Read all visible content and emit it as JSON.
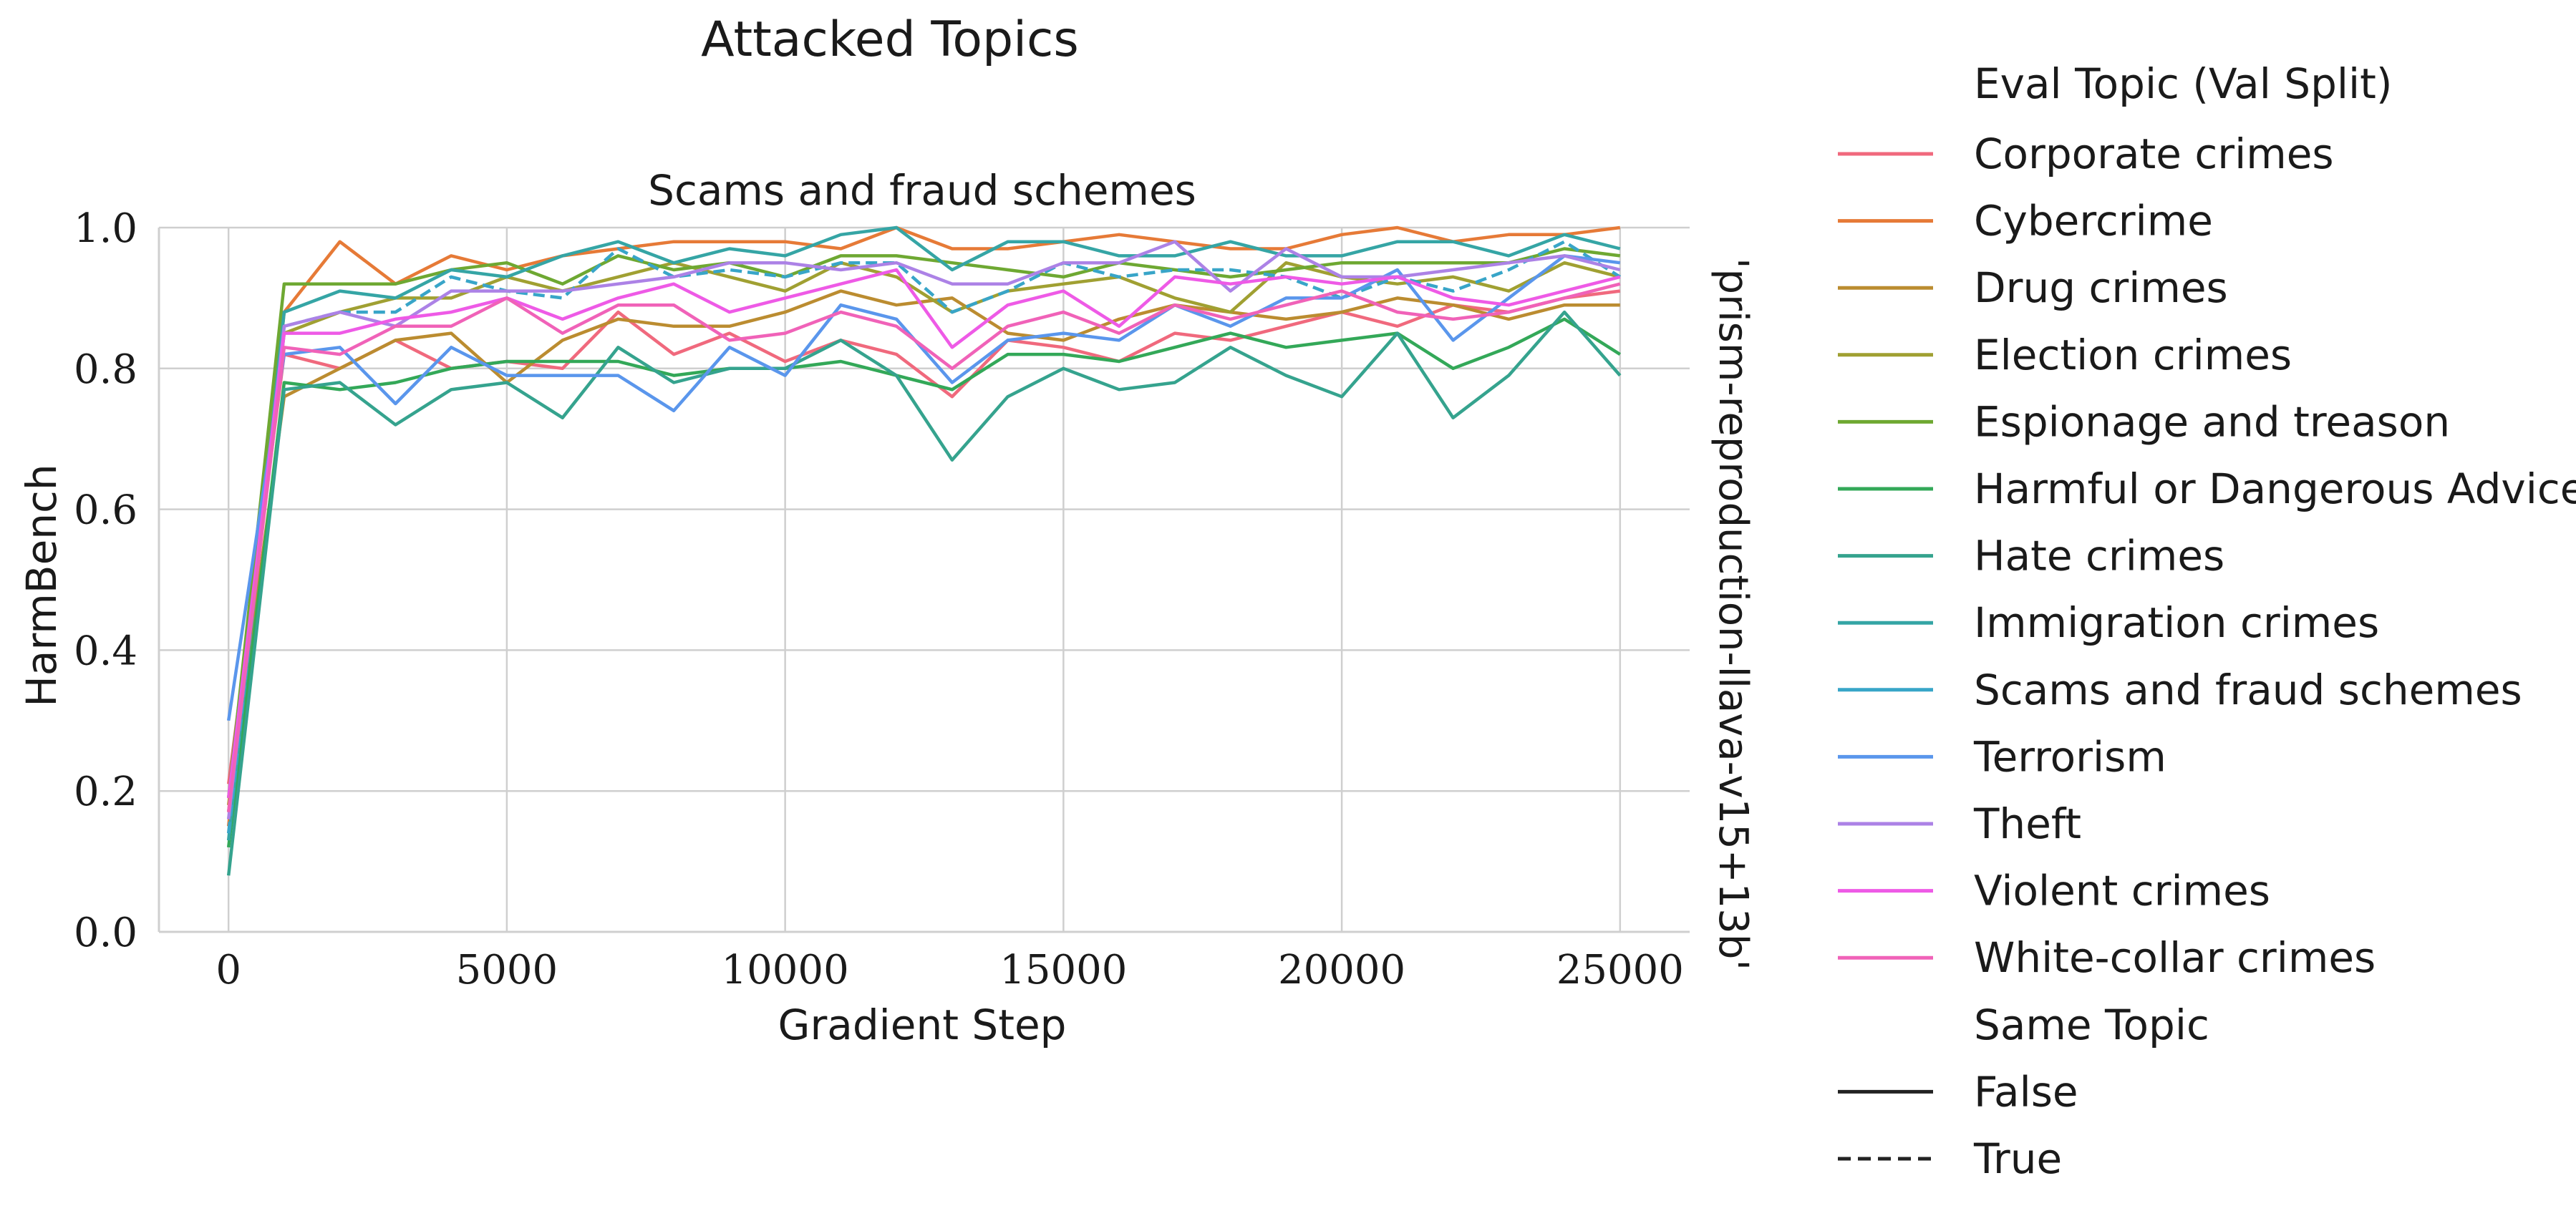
{
  "chart_data": {
    "type": "line",
    "suptitle": "Attacked Topics",
    "title": "Scams and fraud schemes",
    "xlabel": "Gradient Step",
    "ylabel": "HarmBench",
    "facet_label": "'prism-reproduction-llava-v15+13b'",
    "xlim": [
      -1250,
      26250
    ],
    "ylim": [
      0,
      1.0
    ],
    "xticks": [
      "0",
      "5000",
      "10000",
      "15000",
      "20000",
      "25000"
    ],
    "yticks": [
      "0.0",
      "0.2",
      "0.4",
      "0.6",
      "0.8",
      "1.0"
    ],
    "grid": true,
    "legend": {
      "title": "Eval Topic (Val Split)",
      "style_title": "Same Topic",
      "style_entries": [
        "False",
        "True"
      ],
      "placement": "right"
    },
    "x": [
      0,
      1000,
      2000,
      3000,
      4000,
      5000,
      6000,
      7000,
      8000,
      9000,
      10000,
      11000,
      12000,
      13000,
      14000,
      15000,
      16000,
      17000,
      18000,
      19000,
      20000,
      21000,
      22000,
      23000,
      24000,
      25000
    ],
    "series": [
      {
        "name": "Corporate crimes",
        "color": "#f0697d",
        "dashed": false,
        "values": [
          0.21,
          0.82,
          0.8,
          0.84,
          0.8,
          0.81,
          0.8,
          0.88,
          0.82,
          0.85,
          0.81,
          0.84,
          0.82,
          0.76,
          0.84,
          0.83,
          0.81,
          0.85,
          0.84,
          0.86,
          0.88,
          0.86,
          0.89,
          0.88,
          0.9,
          0.91
        ]
      },
      {
        "name": "Cybercrime",
        "color": "#e67a37",
        "dashed": false,
        "values": [
          0.15,
          0.88,
          0.98,
          0.92,
          0.96,
          0.94,
          0.96,
          0.97,
          0.98,
          0.98,
          0.98,
          0.97,
          1.0,
          0.97,
          0.97,
          0.98,
          0.99,
          0.98,
          0.97,
          0.97,
          0.99,
          1.0,
          0.98,
          0.99,
          0.99,
          1.0
        ]
      },
      {
        "name": "Drug crimes",
        "color": "#bb8c30",
        "dashed": false,
        "values": [
          0.18,
          0.76,
          0.8,
          0.84,
          0.85,
          0.78,
          0.84,
          0.87,
          0.86,
          0.86,
          0.88,
          0.91,
          0.89,
          0.9,
          0.85,
          0.84,
          0.87,
          0.89,
          0.88,
          0.87,
          0.88,
          0.9,
          0.89,
          0.87,
          0.89,
          0.89
        ]
      },
      {
        "name": "Election crimes",
        "color": "#a0a032",
        "dashed": false,
        "values": [
          0.17,
          0.85,
          0.88,
          0.9,
          0.9,
          0.93,
          0.91,
          0.93,
          0.95,
          0.93,
          0.91,
          0.95,
          0.93,
          0.88,
          0.91,
          0.92,
          0.93,
          0.9,
          0.88,
          0.95,
          0.93,
          0.92,
          0.93,
          0.91,
          0.95,
          0.93
        ]
      },
      {
        "name": "Espionage and treason",
        "color": "#6ea832",
        "dashed": false,
        "values": [
          0.19,
          0.92,
          0.92,
          0.92,
          0.94,
          0.95,
          0.92,
          0.96,
          0.94,
          0.95,
          0.93,
          0.96,
          0.96,
          0.95,
          0.94,
          0.93,
          0.95,
          0.94,
          0.93,
          0.94,
          0.95,
          0.95,
          0.95,
          0.95,
          0.97,
          0.96
        ]
      },
      {
        "name": "Harmful or Dangerous Advice",
        "color": "#33a858",
        "dashed": false,
        "values": [
          0.12,
          0.78,
          0.77,
          0.78,
          0.8,
          0.81,
          0.81,
          0.81,
          0.79,
          0.8,
          0.8,
          0.81,
          0.79,
          0.77,
          0.82,
          0.82,
          0.81,
          0.83,
          0.85,
          0.83,
          0.84,
          0.85,
          0.8,
          0.83,
          0.87,
          0.82
        ]
      },
      {
        "name": "Hate crimes",
        "color": "#35a38e",
        "dashed": false,
        "values": [
          0.08,
          0.77,
          0.78,
          0.72,
          0.77,
          0.78,
          0.73,
          0.83,
          0.78,
          0.8,
          0.8,
          0.84,
          0.79,
          0.67,
          0.76,
          0.8,
          0.77,
          0.78,
          0.83,
          0.79,
          0.76,
          0.85,
          0.73,
          0.79,
          0.88,
          0.79
        ]
      },
      {
        "name": "Immigration crimes",
        "color": "#35a5a5",
        "dashed": false,
        "values": [
          0.13,
          0.88,
          0.91,
          0.9,
          0.94,
          0.93,
          0.96,
          0.98,
          0.95,
          0.97,
          0.96,
          0.99,
          1.0,
          0.94,
          0.98,
          0.98,
          0.96,
          0.96,
          0.98,
          0.96,
          0.96,
          0.98,
          0.98,
          0.96,
          0.99,
          0.97
        ]
      },
      {
        "name": "Scams and fraud schemes",
        "color": "#38a5c8",
        "dashed": true,
        "values": [
          0.14,
          0.86,
          0.88,
          0.88,
          0.93,
          0.91,
          0.9,
          0.97,
          0.93,
          0.94,
          0.93,
          0.95,
          0.95,
          0.88,
          0.91,
          0.95,
          0.93,
          0.94,
          0.94,
          0.93,
          0.9,
          0.93,
          0.91,
          0.94,
          0.98,
          0.93
        ]
      },
      {
        "name": "Terrorism",
        "color": "#5a96ec",
        "dashed": false,
        "values": [
          0.3,
          0.82,
          0.83,
          0.75,
          0.83,
          0.79,
          0.79,
          0.79,
          0.74,
          0.83,
          0.79,
          0.89,
          0.87,
          0.78,
          0.84,
          0.85,
          0.84,
          0.89,
          0.86,
          0.9,
          0.9,
          0.94,
          0.84,
          0.9,
          0.96,
          0.95
        ]
      },
      {
        "name": "Theft",
        "color": "#ac82e6",
        "dashed": false,
        "values": [
          0.16,
          0.86,
          0.88,
          0.86,
          0.91,
          0.91,
          0.91,
          0.92,
          0.93,
          0.95,
          0.95,
          0.94,
          0.95,
          0.92,
          0.92,
          0.95,
          0.95,
          0.98,
          0.91,
          0.97,
          0.93,
          0.93,
          0.94,
          0.95,
          0.96,
          0.94
        ]
      },
      {
        "name": "Violent crimes",
        "color": "#ee5ae6",
        "dashed": false,
        "values": [
          0.19,
          0.85,
          0.85,
          0.87,
          0.88,
          0.9,
          0.87,
          0.9,
          0.92,
          0.88,
          0.9,
          0.92,
          0.94,
          0.83,
          0.89,
          0.91,
          0.86,
          0.93,
          0.92,
          0.93,
          0.92,
          0.93,
          0.9,
          0.89,
          0.91,
          0.93
        ]
      },
      {
        "name": "White-collar crimes",
        "color": "#f062b8",
        "dashed": false,
        "values": [
          0.17,
          0.83,
          0.82,
          0.86,
          0.86,
          0.9,
          0.85,
          0.89,
          0.89,
          0.84,
          0.85,
          0.88,
          0.86,
          0.8,
          0.86,
          0.88,
          0.85,
          0.89,
          0.87,
          0.89,
          0.91,
          0.88,
          0.87,
          0.88,
          0.9,
          0.92
        ]
      }
    ]
  }
}
